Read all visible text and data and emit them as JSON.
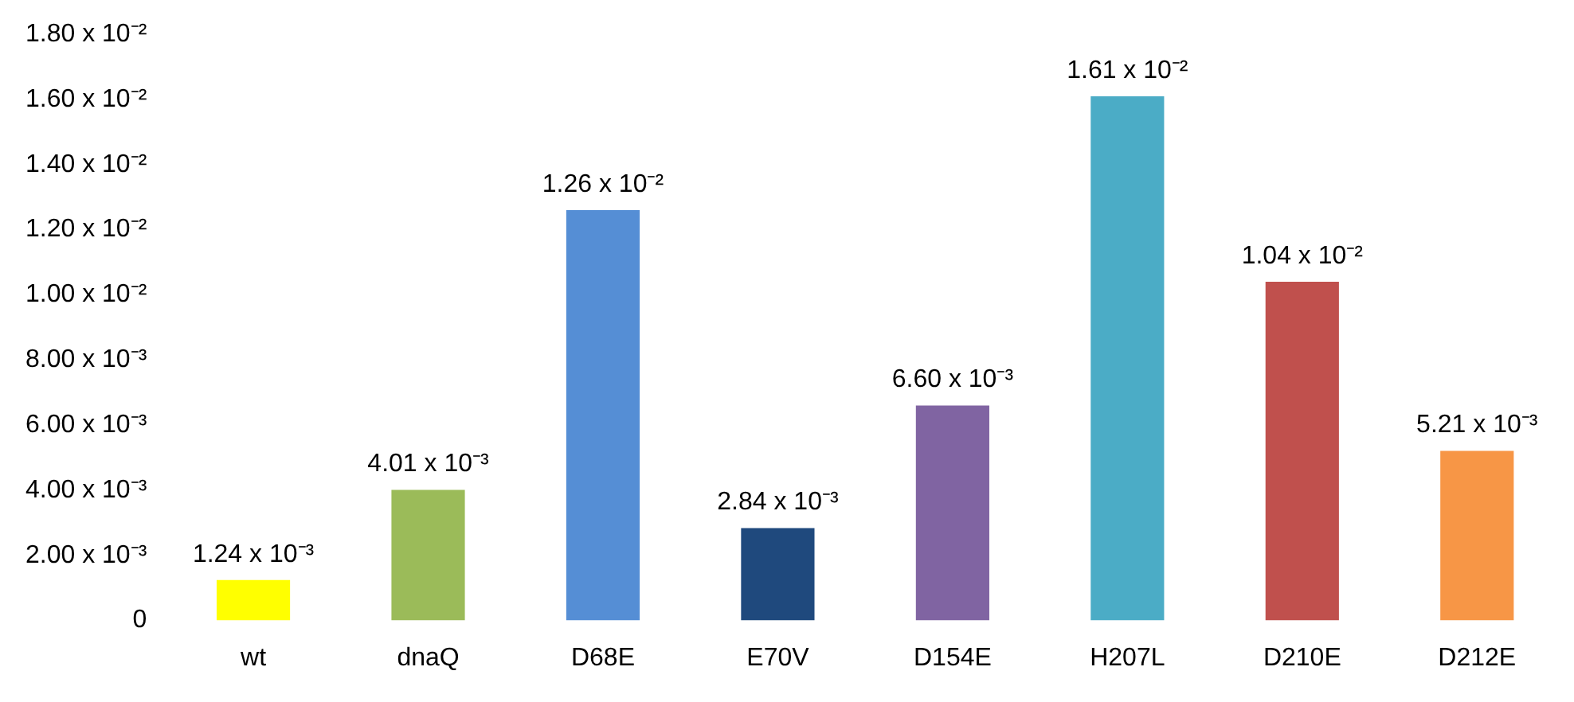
{
  "chart_data": {
    "type": "bar",
    "categories": [
      "wt",
      "dnaQ",
      "D68E",
      "E70V",
      "D154E",
      "H207L",
      "D210E",
      "D212E"
    ],
    "values": [
      0.00124,
      0.00401,
      0.0126,
      0.00284,
      0.0066,
      0.0161,
      0.0104,
      0.00521
    ],
    "colors": [
      "#ffff00",
      "#9bbb59",
      "#558ed5",
      "#1f497d",
      "#8064a2",
      "#4bacc6",
      "#c0504d",
      "#f79646"
    ],
    "value_labels": [
      "1.24 x 10⁻³",
      "4.01 x 10⁻³",
      "1.26 x 10⁻²",
      "2.84 x 10⁻³",
      "6.60 x 10⁻³",
      "1.61 x 10⁻²",
      "1.04 x 10⁻²",
      "5.21 x 10⁻³"
    ],
    "ylim": [
      0,
      0.018
    ],
    "yticks": [
      0,
      {
        "value": 0.002,
        "label": "2.00 x 10⁻³"
      },
      {
        "value": 0.004,
        "label": "4.00 x 10⁻³"
      },
      {
        "value": 0.006,
        "label": "6.00 x 10⁻³"
      },
      {
        "value": 0.008,
        "label": "8.00 x 10⁻³"
      },
      {
        "value": 0.01,
        "label": "1.00 x 10⁻²"
      },
      {
        "value": 0.012,
        "label": "1.20 x 10⁻²"
      },
      {
        "value": 0.014,
        "label": "1.40 x 10⁻²"
      },
      {
        "value": 0.016,
        "label": "1.60 x 10⁻²"
      },
      {
        "value": 0.018,
        "label": "1.80 x 10⁻²"
      }
    ],
    "grid": false,
    "legend": false
  }
}
